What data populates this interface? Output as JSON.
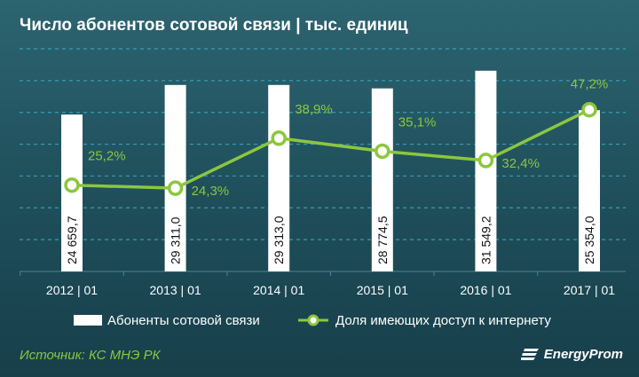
{
  "header": {
    "title": "Число абонентов сотовой связи | тыс. единиц"
  },
  "footer": {
    "source": "Источник: КС МНЭ РК",
    "brand": "EnergyProm"
  },
  "colors": {
    "background": "#1e4e5a",
    "bar": "#ffffff",
    "line": "#8cc63f",
    "label": "#8cc63f",
    "grid": "#3ba9c6"
  },
  "chart_data": {
    "type": "bar+line",
    "categories": [
      "2012 | 01",
      "2013 | 01",
      "2014 | 01",
      "2015 | 01",
      "2016 | 01",
      "2017 | 01"
    ],
    "series": [
      {
        "name": "Абоненты сотовой связи",
        "type": "bar",
        "values": [
          24659.7,
          29311.0,
          29313.0,
          28774.5,
          31549.2,
          25354.0
        ],
        "labels": [
          "24 659,7",
          "29 311,0",
          "29 313,0",
          "28 774,5",
          "31 549,2",
          "25 354,0"
        ]
      },
      {
        "name": "Доля имеющих доступ к интернету",
        "type": "line",
        "values": [
          25.2,
          24.3,
          38.9,
          35.1,
          32.4,
          47.2
        ],
        "labels": [
          "25,2%",
          "24,3%",
          "38,9%",
          "35,1%",
          "32,4%",
          "47,2%"
        ],
        "label_positions": [
          "above",
          "below",
          "above",
          "above",
          "below",
          "above"
        ]
      }
    ],
    "bar_ylim": [
      0,
      35000
    ],
    "line_ylim": [
      0,
      65
    ],
    "grid": true,
    "legend": "bottom"
  }
}
